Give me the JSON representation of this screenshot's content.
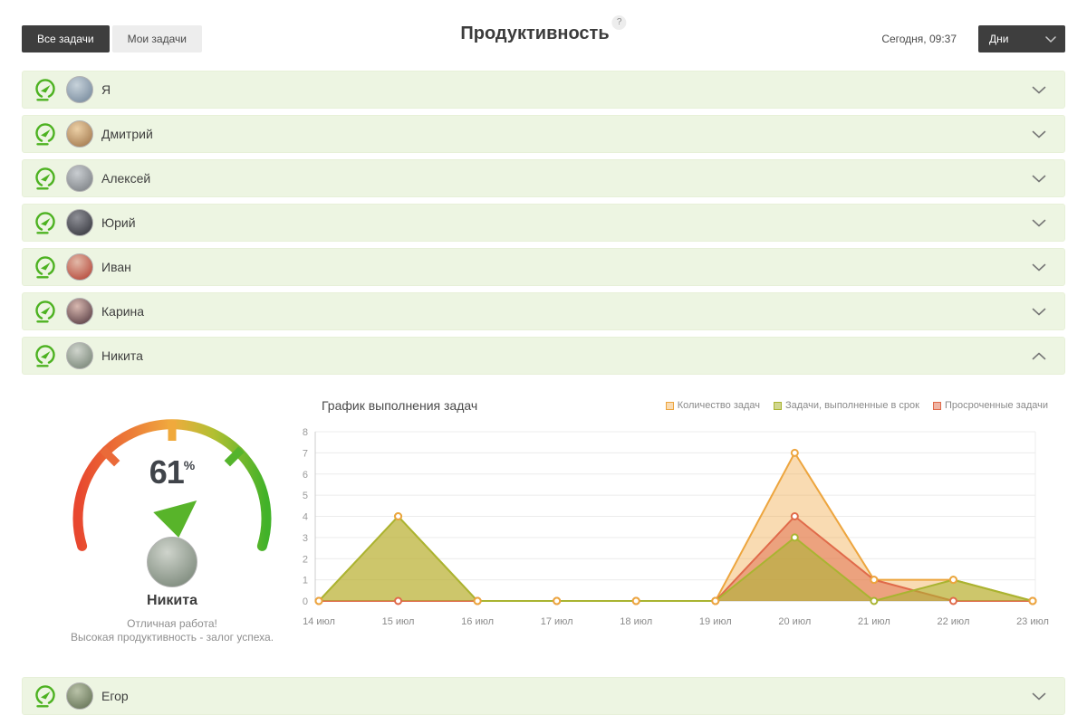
{
  "toolbar": {
    "all_tasks_label": "Все задачи",
    "my_tasks_label": "Мои задачи",
    "title": "Продуктивность",
    "help_badge": "?",
    "timestamp": "Сегодня, 09:37",
    "period_selected": "Дни"
  },
  "users": [
    {
      "name": "Я"
    },
    {
      "name": "Дмитрий"
    },
    {
      "name": "Алексей"
    },
    {
      "name": "Юрий"
    },
    {
      "name": "Иван"
    },
    {
      "name": "Карина"
    },
    {
      "name": "Никита",
      "expanded": true
    },
    {
      "name": "Егор"
    }
  ],
  "detail": {
    "score_text": "61",
    "percent_sign": "%",
    "user": "Никита",
    "message_line1": "Отличная работа!",
    "message_line2": "Высокая продуктивность - залог успеха."
  },
  "chart_data": {
    "type": "area",
    "title": "График выполнения задач",
    "categories": [
      "14 июл",
      "15 июл",
      "16 июл",
      "17 июл",
      "18 июл",
      "19 июл",
      "20 июл",
      "21 июл",
      "22 июл",
      "23 июл"
    ],
    "series": [
      {
        "name": "Количество задач",
        "color": "#eda53e",
        "fill": "rgba(239,166,62,0.40)",
        "values": [
          0,
          4,
          0,
          0,
          0,
          0,
          7,
          1,
          1,
          0
        ]
      },
      {
        "name": "Задачи, выполненные в срок",
        "color": "#a9b431",
        "fill": "rgba(169,180,49,0.55)",
        "values": [
          0,
          4,
          0,
          0,
          0,
          0,
          3,
          0,
          1,
          0
        ]
      },
      {
        "name": "Просроченные задачи",
        "color": "#e06a4a",
        "fill": "rgba(224,106,74,0.50)",
        "values": [
          0,
          0,
          0,
          0,
          0,
          0,
          4,
          1,
          0,
          0
        ]
      }
    ],
    "xlabel": "",
    "ylabel": "",
    "ylim": [
      0,
      8
    ],
    "yticks": [
      0,
      1,
      2,
      3,
      4,
      5,
      6,
      7,
      8
    ],
    "grid": true,
    "legend_position": "top-right",
    "area_draw_order": [
      0,
      2,
      1
    ],
    "marker_draw_order": [
      1,
      2,
      0
    ]
  }
}
